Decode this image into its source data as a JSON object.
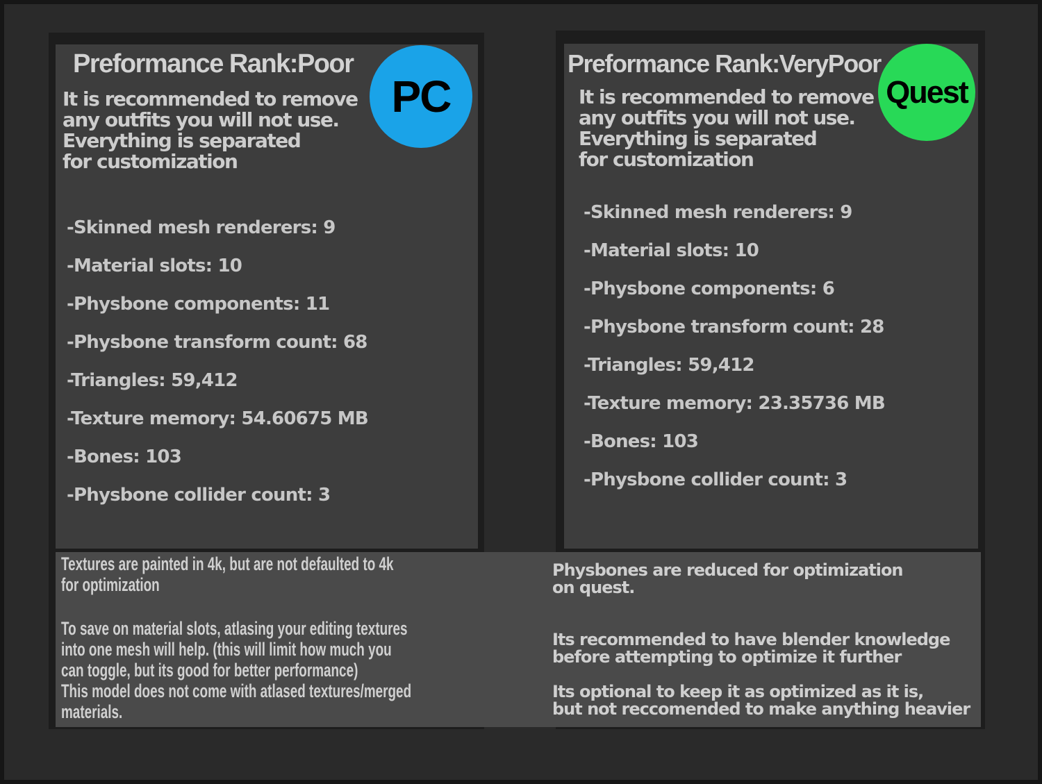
{
  "left_panel": {
    "title": "Preformance Rank:Poor",
    "rank": "Poor",
    "badge_label": "PC",
    "badge_color": "#1aa3e8",
    "description_lines": [
      "It is recommended to remove",
      "any outfits you will not use.",
      "Everything is separated",
      "for customization"
    ],
    "stats": [
      "-Skinned mesh renderers: 9",
      "-Material slots: 10",
      "-Physbone components: 11",
      "-Physbone transform count: 68",
      "-Triangles: 59,412",
      "-Texture memory: 54.60675 MB",
      "-Bones: 103",
      "-Physbone collider count: 3"
    ]
  },
  "right_panel": {
    "title": "Preformance Rank:VeryPoor",
    "rank": "VeryPoor",
    "badge_label": "Quest",
    "badge_color": "#28d957",
    "description_lines": [
      "It is recommended to remove",
      "any outfits you will not use.",
      "Everything is separated",
      "for customization"
    ],
    "stats": [
      "-Skinned mesh renderers: 9",
      "-Material slots: 10",
      "-Physbone components: 6",
      "-Physbone transform count: 28",
      "-Triangles: 59,412",
      "-Texture memory: 23.35736 MB",
      "-Bones: 103",
      "-Physbone collider count: 3"
    ]
  },
  "footer": {
    "left_paragraphs": [
      [
        "Textures are painted in 4k, but are not defaulted to 4k",
        "for optimization"
      ],
      [
        "To save on material slots, atlasing your editing textures",
        "into one mesh will help. (this will limit how much you",
        "can toggle, but its good for better performance)",
        "This model does not come with atlased textures/merged",
        "materials."
      ]
    ],
    "right_paragraphs": [
      [
        "Physbones are reduced for optimization",
        "on quest."
      ],
      [
        "Its recommended to have blender knowledge",
        "before attempting to optimize it further"
      ],
      [
        "Its optional to keep it as optimized as it is,",
        "but not reccomended to make anything heavier"
      ]
    ]
  },
  "colors": {
    "background": "#2a2a2a",
    "panel": "#3d3d3d",
    "panel_shadow": "#1d1d1d",
    "footer_box": "#4a4a4a",
    "text": "#cdcdcd"
  }
}
